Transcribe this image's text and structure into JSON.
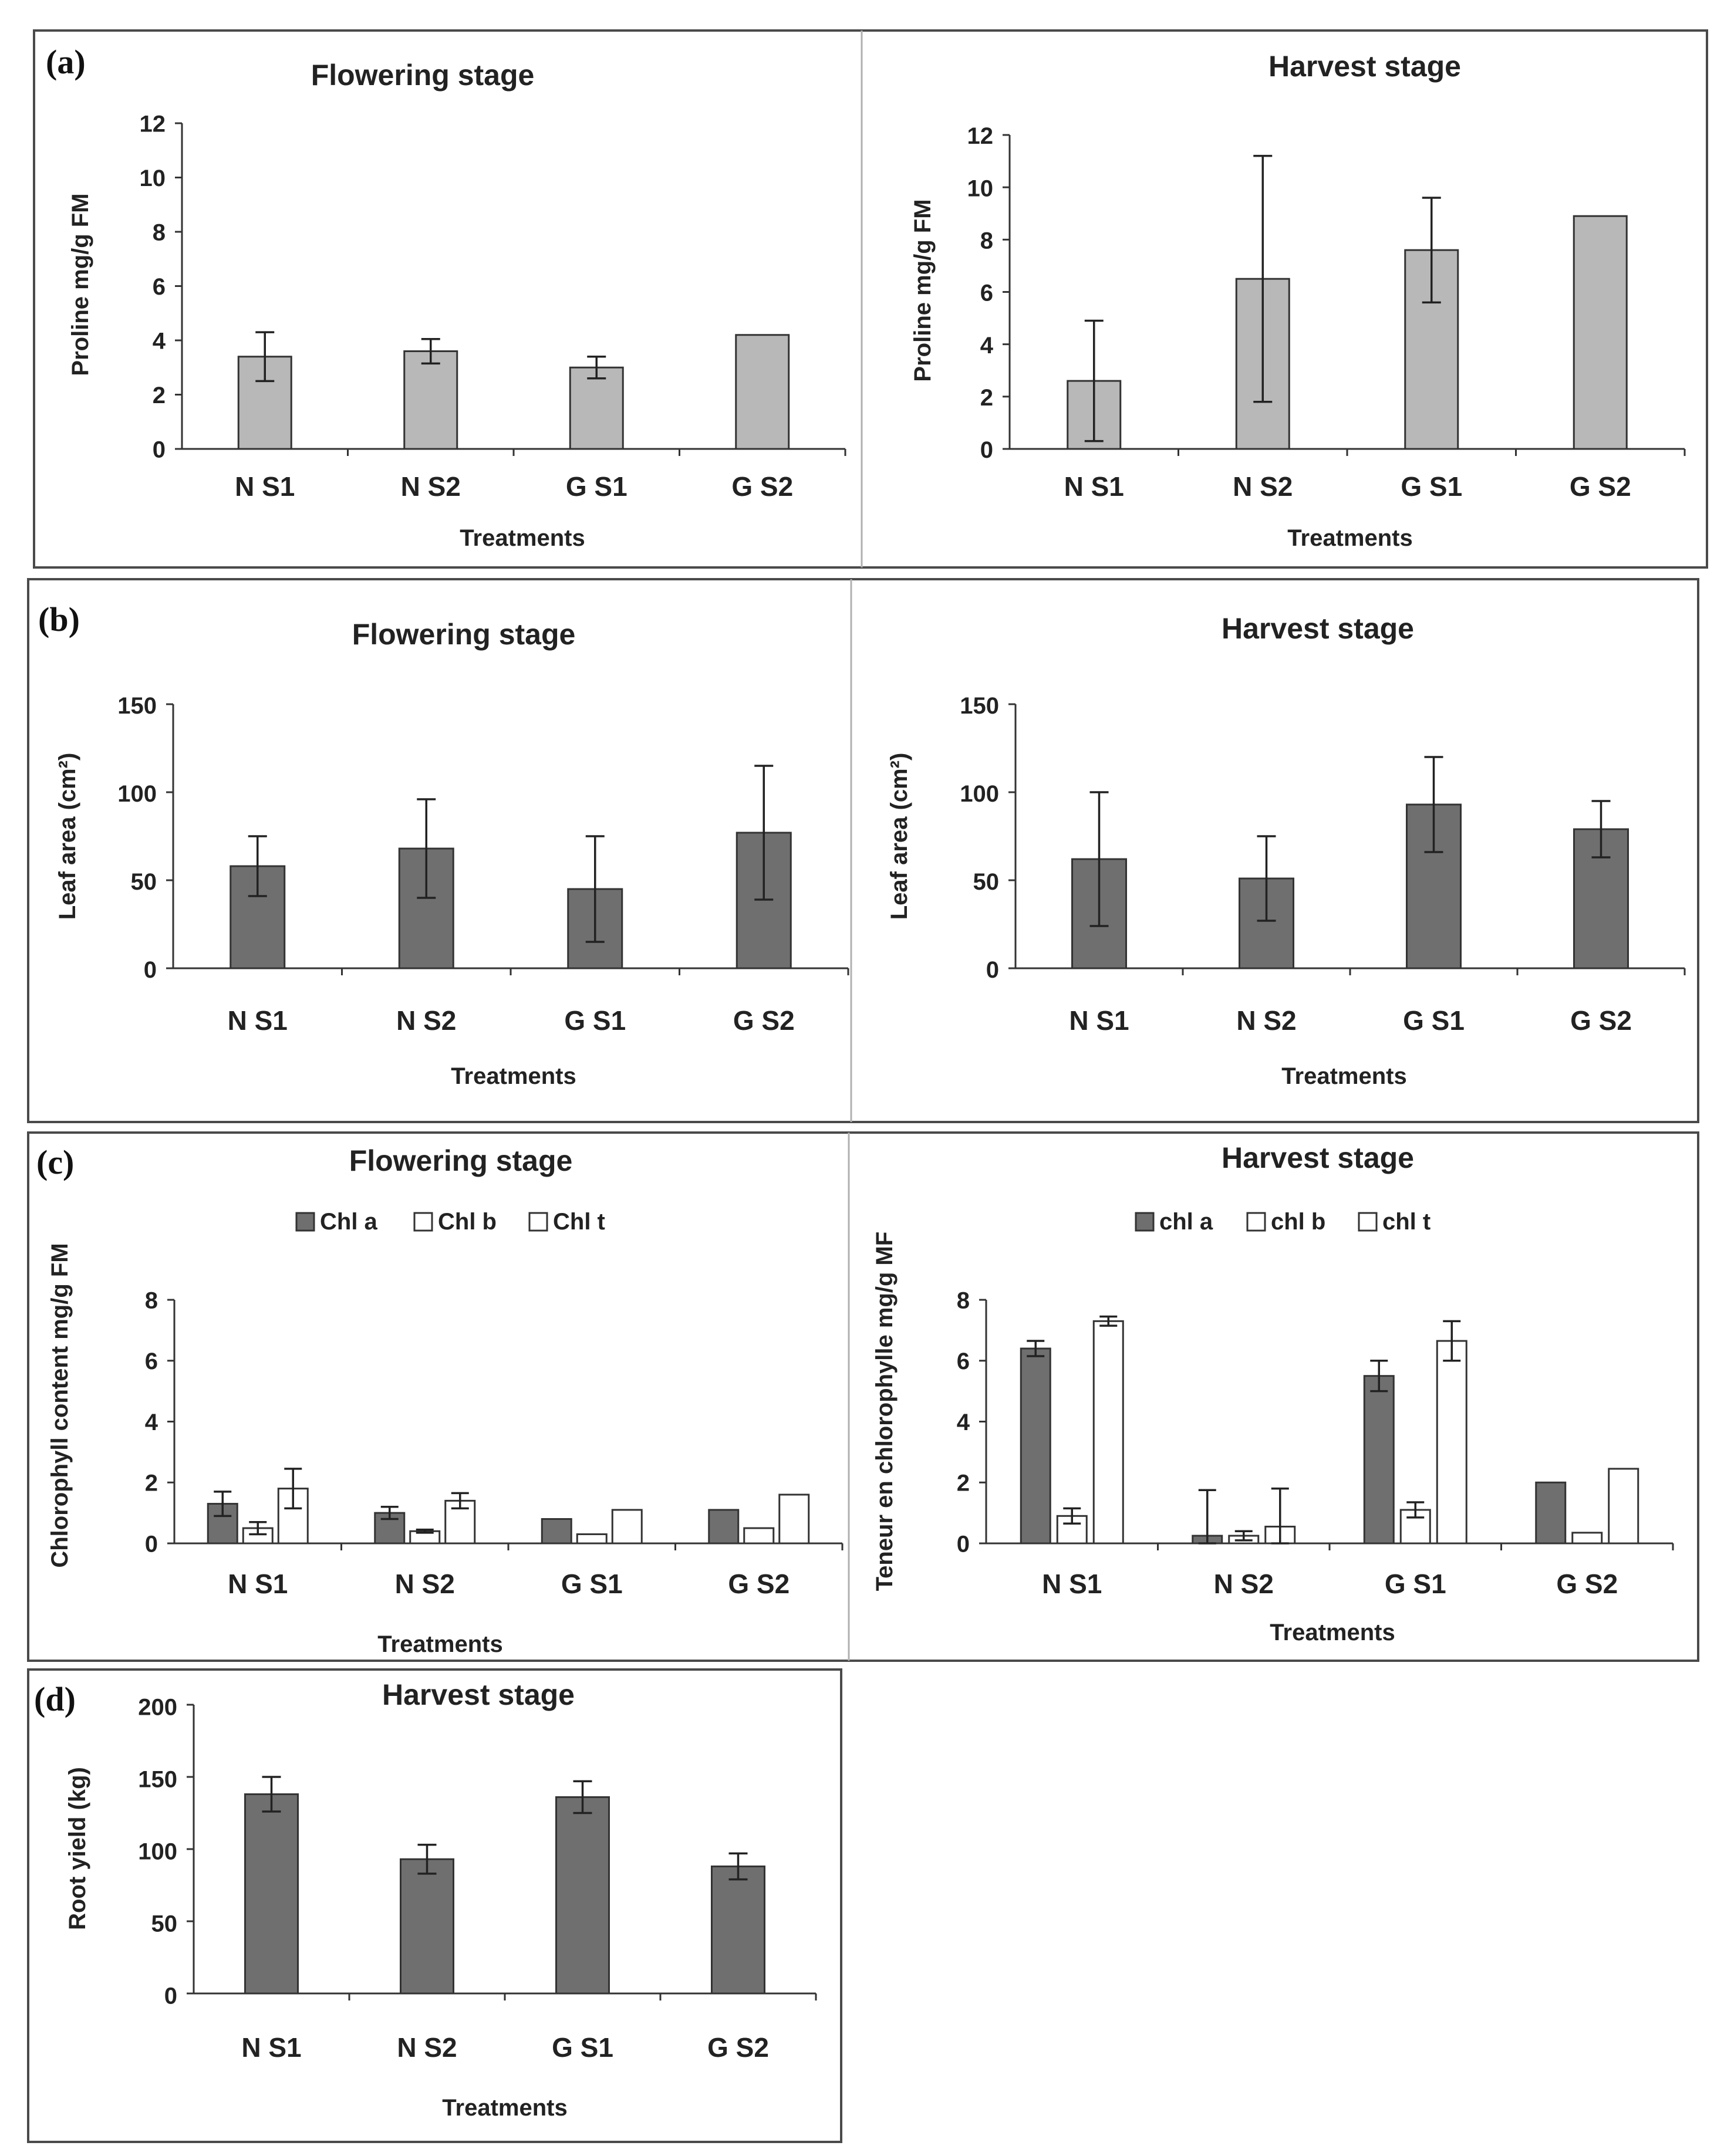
{
  "panels": [
    {
      "letter": "(a)"
    },
    {
      "letter": "(b)"
    },
    {
      "letter": "(c)"
    },
    {
      "letter": "(d)"
    }
  ],
  "colors": {
    "light_bar": "#b8b8b8",
    "dark_bar": "#6f6f6f",
    "white_bar": "#ffffff"
  },
  "chart_data": [
    {
      "id": "a1",
      "panel": "(a)",
      "type": "bar",
      "title": "Flowering stage",
      "xlabel": "Treatments",
      "ylabel": "Proline mg/g FM",
      "categories": [
        "N S1",
        "N S2",
        "G S1",
        "G S2"
      ],
      "ylim": [
        0,
        12
      ],
      "yticks": [
        0,
        2,
        4,
        6,
        8,
        10,
        12
      ],
      "series": [
        {
          "name": "Proline",
          "color": "#b8b8b8",
          "values": [
            3.4,
            3.6,
            3.0,
            4.2
          ],
          "errors": [
            0.9,
            0.45,
            0.4,
            0
          ]
        }
      ]
    },
    {
      "id": "a2",
      "panel": "(a)",
      "type": "bar",
      "title": "Harvest stage",
      "xlabel": "Treatments",
      "ylabel": "Proline mg/g FM",
      "categories": [
        "N S1",
        "N S2",
        "G S1",
        "G S2"
      ],
      "ylim": [
        0,
        12
      ],
      "yticks": [
        0,
        2,
        4,
        6,
        8,
        10,
        12
      ],
      "series": [
        {
          "name": "Proline",
          "color": "#b8b8b8",
          "values": [
            2.6,
            6.5,
            7.6,
            8.9
          ],
          "errors": [
            2.3,
            4.7,
            2.0,
            0
          ]
        }
      ]
    },
    {
      "id": "b1",
      "panel": "(b)",
      "type": "bar",
      "title": "Flowering stage",
      "xlabel": "Treatments",
      "ylabel": "Leaf area (cm²)",
      "categories": [
        "N S1",
        "N S2",
        "G S1",
        "G S2"
      ],
      "ylim": [
        0,
        150
      ],
      "yticks": [
        0,
        50,
        100,
        150
      ],
      "series": [
        {
          "name": "Leaf area",
          "color": "#6f6f6f",
          "values": [
            58,
            68,
            45,
            77
          ],
          "errors": [
            17,
            28,
            30,
            38
          ]
        }
      ]
    },
    {
      "id": "b2",
      "panel": "(b)",
      "type": "bar",
      "title": "Harvest stage",
      "xlabel": "Treatments",
      "ylabel": "Leaf area (cm²)",
      "categories": [
        "N S1",
        "N S2",
        "G S1",
        "G S2"
      ],
      "ylim": [
        0,
        150
      ],
      "yticks": [
        0,
        50,
        100,
        150
      ],
      "series": [
        {
          "name": "Leaf area",
          "color": "#6f6f6f",
          "values": [
            62,
            51,
            93,
            79
          ],
          "errors": [
            38,
            24,
            27,
            16
          ]
        }
      ]
    },
    {
      "id": "c1",
      "panel": "(c)",
      "type": "bar",
      "title": "Flowering stage",
      "xlabel": "Treatments",
      "ylabel": "Chlorophyll content mg/g FM",
      "categories": [
        "N S1",
        "N S2",
        "G S1",
        "G S2"
      ],
      "ylim": [
        0,
        8
      ],
      "yticks": [
        0,
        2,
        4,
        6,
        8
      ],
      "legend": [
        "Chl a",
        "Chl b",
        "Chl t"
      ],
      "series": [
        {
          "name": "Chl a",
          "color": "#6f6f6f",
          "values": [
            1.3,
            1.0,
            0.8,
            1.1
          ],
          "errors": [
            0.4,
            0.2,
            0,
            0
          ]
        },
        {
          "name": "Chl b",
          "color": "#ffffff",
          "values": [
            0.5,
            0.4,
            0.3,
            0.5
          ],
          "errors": [
            0.2,
            0.05,
            0,
            0
          ]
        },
        {
          "name": "Chl t",
          "color": "#ffffff",
          "values": [
            1.8,
            1.4,
            1.1,
            1.6
          ],
          "errors": [
            0.65,
            0.25,
            0,
            0
          ]
        }
      ]
    },
    {
      "id": "c2",
      "panel": "(c)",
      "type": "bar",
      "title": "Harvest stage",
      "xlabel": "Treatments",
      "ylabel": "Teneur en chlorophylle mg/g MF",
      "categories": [
        "N S1",
        "N S2",
        "G S1",
        "G S2"
      ],
      "ylim": [
        0,
        8
      ],
      "yticks": [
        0,
        2,
        4,
        6,
        8
      ],
      "legend": [
        "chl a",
        "chl b",
        "chl t"
      ],
      "series": [
        {
          "name": "chl a",
          "color": "#6f6f6f",
          "values": [
            6.4,
            0.25,
            5.5,
            2.0
          ],
          "errors": [
            0.25,
            1.5,
            0.5,
            0
          ]
        },
        {
          "name": "chl b",
          "color": "#ffffff",
          "values": [
            0.9,
            0.25,
            1.1,
            0.35
          ],
          "errors": [
            0.25,
            0.15,
            0.25,
            0
          ]
        },
        {
          "name": "chl t",
          "color": "#ffffff",
          "values": [
            7.3,
            0.55,
            6.65,
            2.45
          ],
          "errors": [
            0.15,
            1.25,
            0.65,
            0
          ]
        }
      ]
    },
    {
      "id": "d1",
      "panel": "(d)",
      "type": "bar",
      "title": "Harvest stage",
      "xlabel": "Treatments",
      "ylabel": "Root yield (kg)",
      "categories": [
        "N S1",
        "N S2",
        "G S1",
        "G S2"
      ],
      "ylim": [
        0,
        200
      ],
      "yticks": [
        0,
        50,
        100,
        150,
        200
      ],
      "series": [
        {
          "name": "Root yield",
          "color": "#6f6f6f",
          "values": [
            138,
            93,
            136,
            88
          ],
          "errors": [
            12,
            10,
            11,
            9
          ]
        }
      ]
    }
  ]
}
